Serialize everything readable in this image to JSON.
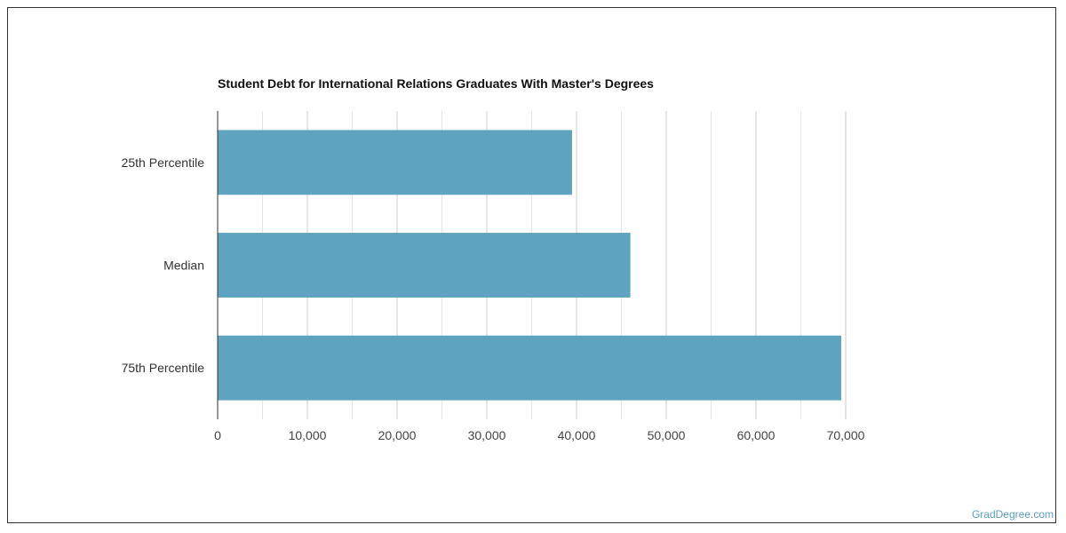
{
  "chart_data": {
    "type": "bar",
    "orientation": "horizontal",
    "title": "Student Debt for International Relations Graduates With Master's Degrees",
    "categories": [
      "25th Percentile",
      "Median",
      "75th Percentile"
    ],
    "values": [
      39500,
      46000,
      69500
    ],
    "xlim": [
      0,
      70000
    ],
    "xticks": [
      0,
      10000,
      20000,
      30000,
      40000,
      50000,
      60000,
      70000
    ],
    "xtick_labels": [
      "0",
      "10,000",
      "20,000",
      "30,000",
      "40,000",
      "50,000",
      "60,000",
      "70,000"
    ],
    "grid": true,
    "bar_color": "#5ea3bf"
  },
  "credit": "GradDegree.com"
}
